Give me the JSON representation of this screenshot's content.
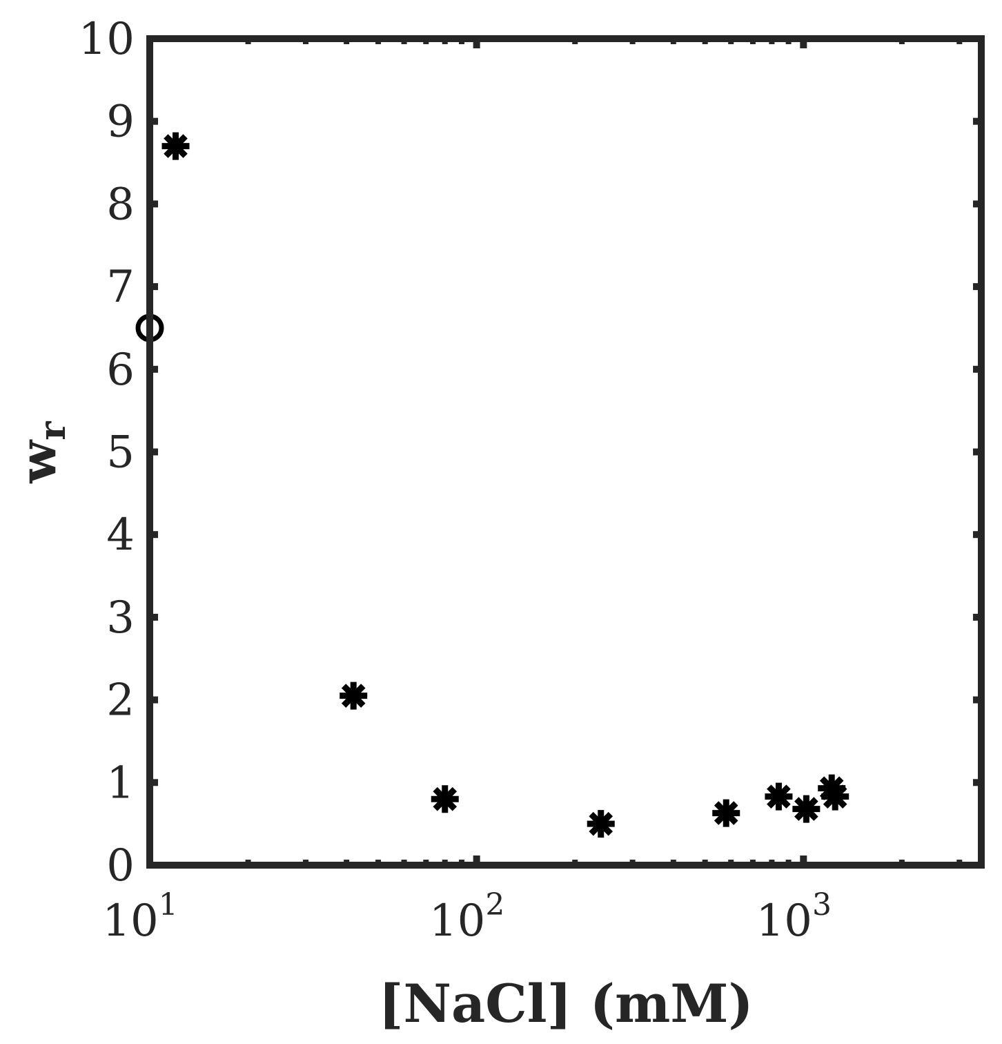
{
  "chart_data": {
    "type": "scatter",
    "title": "",
    "xlabel": "[NaCl] (mM)",
    "ylabel_base": "w",
    "ylabel_subscript": "r",
    "x_scale": "log",
    "xlim": [
      10,
      3500
    ],
    "ylim": [
      0,
      10
    ],
    "x_ticks": [
      {
        "base": "10",
        "exp": "1",
        "value": 10
      },
      {
        "base": "10",
        "exp": "2",
        "value": 100
      },
      {
        "base": "10",
        "exp": "3",
        "value": 1000
      }
    ],
    "y_ticks": [
      0,
      1,
      2,
      3,
      4,
      5,
      6,
      7,
      8,
      9,
      10
    ],
    "y_tick_labels": [
      "0",
      "1",
      "2",
      "3",
      "4",
      "5",
      "6",
      "7",
      "8",
      "9",
      "10"
    ],
    "grid": false,
    "series": [
      {
        "marker": "asterisk",
        "color": "#000000",
        "x": [
          12,
          42,
          80,
          240,
          580,
          840,
          1020,
          1220,
          1250
        ],
        "y": [
          8.7,
          2.05,
          0.8,
          0.5,
          0.63,
          0.83,
          0.68,
          0.93,
          0.83
        ]
      },
      {
        "marker": "circle-open",
        "color": "#000000",
        "x": [
          10
        ],
        "y": [
          6.5
        ]
      }
    ]
  }
}
